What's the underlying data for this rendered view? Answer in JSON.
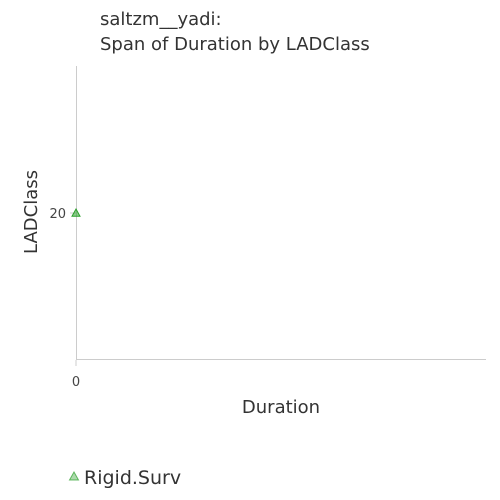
{
  "chart_data": {
    "type": "scatter",
    "title_line1": "saltzm__yadi:",
    "title_line2": "Span of Duration by LADClass",
    "xlabel": "Duration",
    "ylabel": "LADClass",
    "x_ticks": [
      {
        "value": 0,
        "label": "0"
      }
    ],
    "y_ticks": [
      {
        "value": 20,
        "label": "20"
      }
    ],
    "xlim": [
      0,
      1
    ],
    "ylim": [
      0,
      40
    ],
    "grid": false,
    "legend_position": "bottom-left",
    "series": [
      {
        "name": "Rigid.Surv",
        "color": "#2ca02c",
        "marker": "triangle",
        "points": [
          {
            "x": 0,
            "y": 20
          }
        ]
      }
    ]
  }
}
